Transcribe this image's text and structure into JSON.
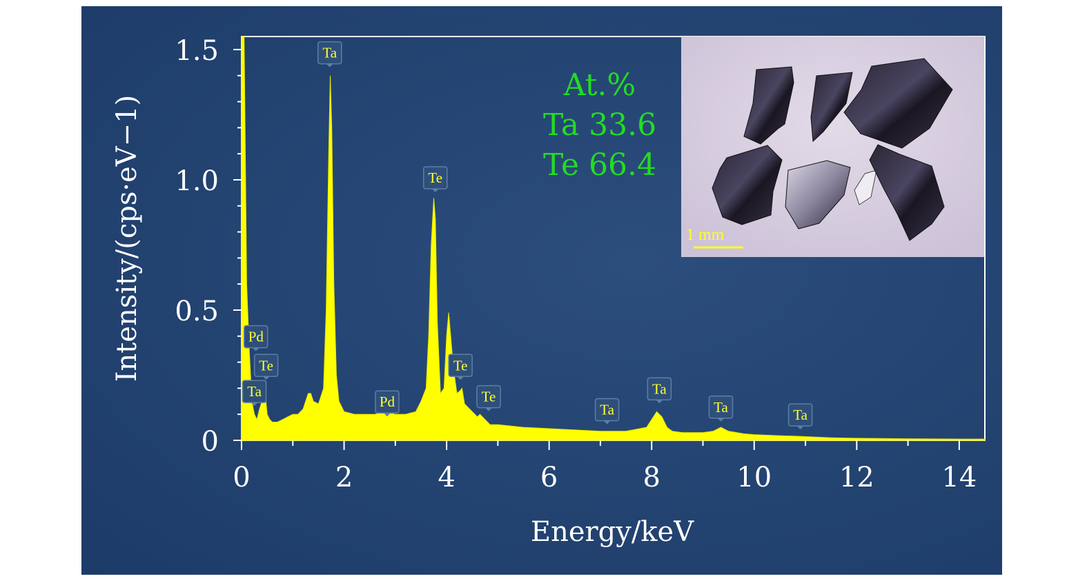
{
  "chart_data": {
    "type": "area",
    "xlabel": "Energy/keV",
    "ylabel": "Intensity/(cps·eV−1)",
    "xlim": [
      0,
      14.5
    ],
    "ylim": [
      0,
      1.55
    ],
    "xticks": [
      "0",
      "2",
      "4",
      "6",
      "8",
      "10",
      "12",
      "14"
    ],
    "yticks": [
      "0",
      "0.5",
      "1.0",
      "1.5"
    ],
    "series_color": "#ffff00",
    "series": [
      {
        "x": [
          0.0,
          0.05,
          0.1,
          0.15,
          0.2,
          0.25,
          0.3,
          0.35,
          0.4,
          0.45,
          0.5,
          0.55,
          0.6,
          0.7,
          0.8,
          0.9,
          1.0,
          1.1,
          1.2,
          1.3,
          1.35,
          1.4,
          1.5,
          1.6,
          1.65,
          1.7,
          1.73,
          1.76,
          1.8,
          1.85,
          1.9,
          2.0,
          2.2,
          2.4,
          2.6,
          2.8,
          3.0,
          3.2,
          3.4,
          3.5,
          3.6,
          3.65,
          3.7,
          3.75,
          3.78,
          3.82,
          3.88,
          3.95,
          4.0,
          4.04,
          4.08,
          4.13,
          4.2,
          4.26,
          4.3,
          4.35,
          4.45,
          4.55,
          4.6,
          4.65,
          4.75,
          4.85,
          5.0,
          5.5,
          6.0,
          6.5,
          7.0,
          7.5,
          7.9,
          8.0,
          8.1,
          8.15,
          8.2,
          8.3,
          8.4,
          8.6,
          9.0,
          9.2,
          9.35,
          9.5,
          9.8,
          10.0,
          10.5,
          10.9,
          11.5,
          12.0,
          13.0,
          14.0,
          14.5
        ],
        "y": [
          1.55,
          1.55,
          0.6,
          0.35,
          0.15,
          0.1,
          0.08,
          0.12,
          0.15,
          0.2,
          0.1,
          0.08,
          0.07,
          0.07,
          0.08,
          0.09,
          0.1,
          0.1,
          0.12,
          0.18,
          0.18,
          0.15,
          0.14,
          0.2,
          0.5,
          1.1,
          1.4,
          1.2,
          0.6,
          0.25,
          0.15,
          0.11,
          0.1,
          0.1,
          0.1,
          0.11,
          0.1,
          0.1,
          0.11,
          0.15,
          0.2,
          0.4,
          0.75,
          0.93,
          0.85,
          0.45,
          0.18,
          0.2,
          0.4,
          0.49,
          0.4,
          0.28,
          0.18,
          0.19,
          0.2,
          0.14,
          0.12,
          0.1,
          0.09,
          0.1,
          0.08,
          0.06,
          0.06,
          0.05,
          0.045,
          0.04,
          0.035,
          0.035,
          0.05,
          0.08,
          0.11,
          0.1,
          0.09,
          0.05,
          0.035,
          0.03,
          0.03,
          0.035,
          0.05,
          0.035,
          0.025,
          0.022,
          0.018,
          0.015,
          0.01,
          0.008,
          0.006,
          0.005,
          0.005
        ]
      }
    ],
    "peak_labels": [
      {
        "label": "Ta",
        "energy": 1.72,
        "value": 1.44
      },
      {
        "label": "Te",
        "energy": 3.78,
        "value": 0.96
      },
      {
        "label": "Pd",
        "energy": 0.28,
        "value": 0.35
      },
      {
        "label": "Te",
        "energy": 0.48,
        "value": 0.24
      },
      {
        "label": "Ta",
        "energy": 0.25,
        "value": 0.14
      },
      {
        "label": "Pd",
        "energy": 2.84,
        "value": 0.1
      },
      {
        "label": "Te",
        "energy": 4.27,
        "value": 0.24
      },
      {
        "label": "Te",
        "energy": 4.82,
        "value": 0.12
      },
      {
        "label": "Ta",
        "energy": 7.13,
        "value": 0.07
      },
      {
        "label": "Ta",
        "energy": 8.15,
        "value": 0.15
      },
      {
        "label": "Ta",
        "energy": 9.35,
        "value": 0.08
      },
      {
        "label": "Ta",
        "energy": 10.9,
        "value": 0.05
      }
    ]
  },
  "composition": {
    "header": "At.%",
    "rows": [
      "Ta 33.6",
      "Te 66.4"
    ]
  },
  "inset": {
    "scale_bar_label": "1 mm",
    "background": "#d6ccde"
  }
}
